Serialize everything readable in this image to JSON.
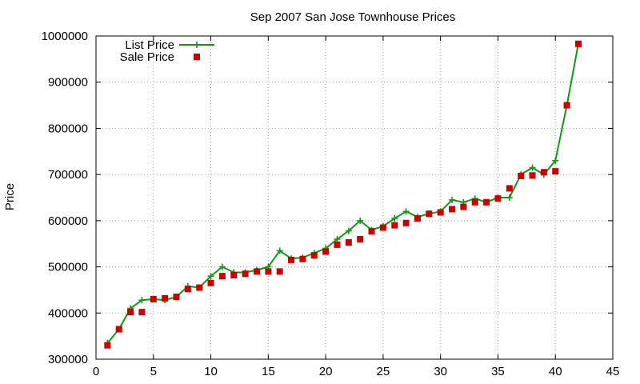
{
  "chart_data": {
    "type": "line",
    "title": "Sep 2007 San Jose Townhouse Prices",
    "xlabel": "",
    "ylabel": "Price",
    "xlim": [
      0,
      45
    ],
    "ylim": [
      300000,
      1000000
    ],
    "x_ticks": [
      0,
      5,
      10,
      15,
      20,
      25,
      30,
      35,
      40,
      45
    ],
    "y_ticks": [
      300000,
      400000,
      500000,
      600000,
      700000,
      800000,
      900000,
      1000000
    ],
    "grid": true,
    "legend_position": "top-left",
    "x": [
      1,
      2,
      3,
      4,
      5,
      6,
      7,
      8,
      9,
      10,
      11,
      12,
      13,
      14,
      15,
      16,
      17,
      18,
      19,
      20,
      21,
      22,
      23,
      24,
      25,
      26,
      27,
      28,
      29,
      30,
      31,
      32,
      33,
      34,
      35,
      36,
      37,
      38,
      39,
      40,
      41,
      42
    ],
    "series": [
      {
        "name": "List Price",
        "style": "line-with-plus",
        "color": "#119911",
        "values": [
          335000,
          365000,
          410000,
          428000,
          430000,
          428000,
          435000,
          458000,
          455000,
          480000,
          500000,
          488000,
          488000,
          493000,
          500000,
          535000,
          518000,
          520000,
          530000,
          540000,
          560000,
          578000,
          600000,
          580000,
          588000,
          605000,
          620000,
          608000,
          615000,
          620000,
          645000,
          640000,
          648000,
          640000,
          650000,
          650000,
          700000,
          715000,
          700000,
          730000,
          850000,
          983000
        ]
      },
      {
        "name": "Sale Price",
        "style": "square-points",
        "color": "#cc0000",
        "values": [
          330000,
          365000,
          402000,
          402000,
          430000,
          432000,
          435000,
          452000,
          455000,
          465000,
          480000,
          482000,
          485000,
          490000,
          490000,
          490000,
          515000,
          517000,
          525000,
          533000,
          548000,
          553000,
          560000,
          577000,
          585000,
          590000,
          595000,
          605000,
          615000,
          618000,
          625000,
          630000,
          640000,
          640000,
          648000,
          670000,
          697000,
          698000,
          705000,
          707000,
          850000,
          983000
        ]
      }
    ]
  }
}
